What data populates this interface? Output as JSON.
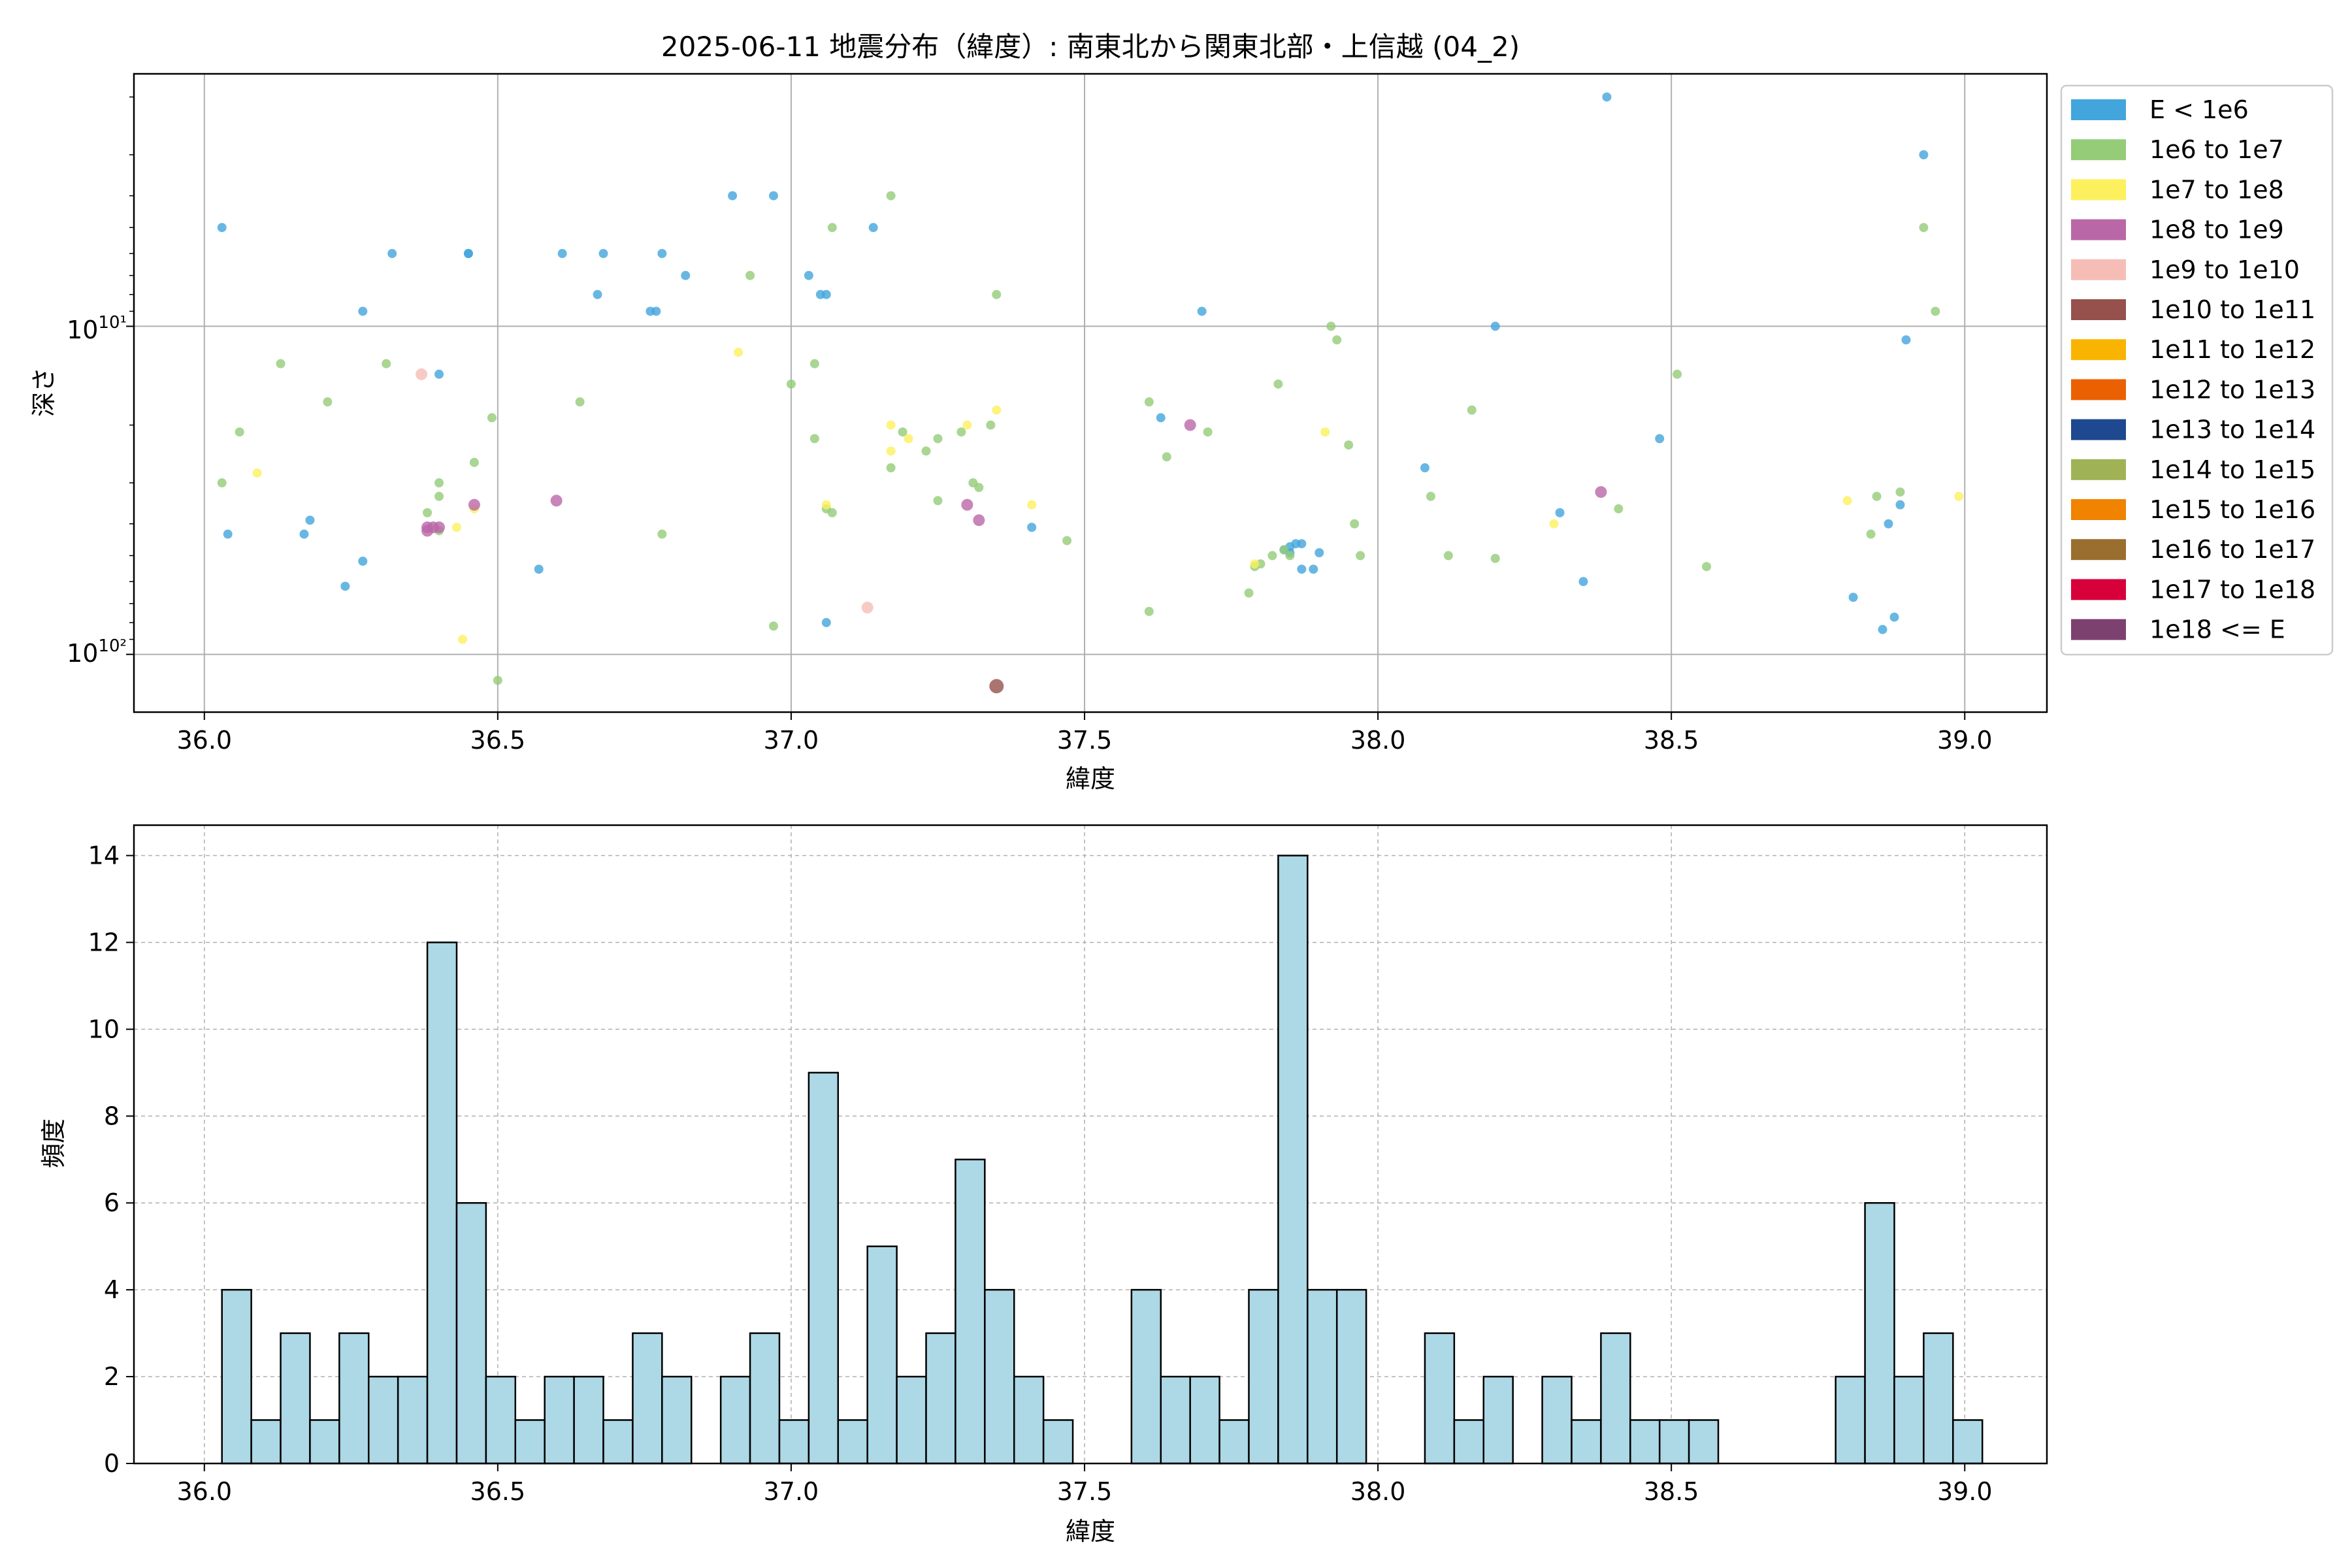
{
  "colors": {
    "bar_fill": "#add8e6",
    "bar_edge": "#000000",
    "grid": "#b0b0b0"
  },
  "chart_data": [
    {
      "type": "scatter",
      "title": "2025-06-11 地震分布（緯度）: 南東北から関東北部・上信越 (04_2)",
      "xlabel": "緯度",
      "ylabel": "深さ",
      "xlim": [
        35.88,
        39.14
      ],
      "ylim": [
        150,
        1.7
      ],
      "y_scale": "log",
      "y_inverted": true,
      "xticks": [
        36.0,
        36.5,
        37.0,
        37.5,
        38.0,
        38.5,
        39.0
      ],
      "xtick_labels": [
        "36.0",
        "36.5",
        "37.0",
        "37.5",
        "38.0",
        "38.5",
        "39.0"
      ],
      "ytick_labels": [
        "10¹",
        "10²"
      ],
      "grid": true,
      "legend": "outside-right",
      "legend_entries": [
        {
          "label": "E < 1e6",
          "color": "#42a5dc"
        },
        {
          "label": "1e6 to 1e7",
          "color": "#94cc78"
        },
        {
          "label": "1e7 to 1e8",
          "color": "#fdf05e"
        },
        {
          "label": "1e8 to 1e9",
          "color": "#ba67a8"
        },
        {
          "label": "1e9 to 1e10",
          "color": "#f6bdb7"
        },
        {
          "label": "1e10 to 1e11",
          "color": "#96514d"
        },
        {
          "label": "1e11 to 1e12",
          "color": "#f8b400"
        },
        {
          "label": "1e12 to 1e13",
          "color": "#eb6101"
        },
        {
          "label": "1e13 to 1e14",
          "color": "#1e4890"
        },
        {
          "label": "1e14 to 1e15",
          "color": "#9fb356"
        },
        {
          "label": "1e15 to 1e16",
          "color": "#f08300"
        },
        {
          "label": "1e16 to 1e17",
          "color": "#9a6e2f"
        },
        {
          "label": "1e17 to 1e18",
          "color": "#d7003a"
        },
        {
          "label": "1e18 <= E",
          "color": "#7d4170"
        }
      ],
      "series": [
        {
          "energy_class": 0,
          "points": [
            [
              36.03,
              5
            ],
            [
              36.04,
              43
            ],
            [
              36.17,
              43
            ],
            [
              36.18,
              39
            ],
            [
              36.24,
              62
            ],
            [
              36.27,
              52
            ],
            [
              36.27,
              9
            ],
            [
              36.32,
              6
            ],
            [
              36.4,
              14
            ],
            [
              36.45,
              6
            ],
            [
              36.45,
              6
            ],
            [
              36.57,
              55
            ],
            [
              36.61,
              6
            ],
            [
              36.67,
              8
            ],
            [
              36.68,
              6
            ],
            [
              36.76,
              9
            ],
            [
              36.77,
              9
            ],
            [
              36.78,
              6
            ],
            [
              36.82,
              7
            ],
            [
              36.9,
              4
            ],
            [
              36.97,
              4
            ],
            [
              37.03,
              7
            ],
            [
              37.05,
              8
            ],
            [
              37.06,
              8
            ],
            [
              37.06,
              80
            ],
            [
              37.14,
              5
            ],
            [
              37.41,
              41
            ],
            [
              37.63,
              19
            ],
            [
              37.7,
              9
            ],
            [
              37.84,
              48
            ],
            [
              37.85,
              47
            ],
            [
              37.85,
              49
            ],
            [
              37.86,
              46
            ],
            [
              37.87,
              46
            ],
            [
              37.87,
              55
            ],
            [
              37.89,
              55
            ],
            [
              37.9,
              49
            ],
            [
              38.08,
              27
            ],
            [
              38.2,
              10
            ],
            [
              38.31,
              37
            ],
            [
              38.35,
              60
            ],
            [
              38.39,
              2
            ],
            [
              38.48,
              22
            ],
            [
              38.81,
              67
            ],
            [
              38.86,
              84
            ],
            [
              38.87,
              40
            ],
            [
              38.88,
              77
            ],
            [
              38.89,
              35
            ],
            [
              38.9,
              11
            ],
            [
              38.93,
              3
            ]
          ]
        },
        {
          "energy_class": 1,
          "points": [
            [
              36.03,
              30
            ],
            [
              36.06,
              21
            ],
            [
              36.13,
              13
            ],
            [
              36.21,
              17
            ],
            [
              36.31,
              13
            ],
            [
              36.38,
              37
            ],
            [
              36.4,
              42
            ],
            [
              36.4,
              33
            ],
            [
              36.4,
              30
            ],
            [
              36.46,
              26
            ],
            [
              36.49,
              19
            ],
            [
              36.5,
              120
            ],
            [
              36.64,
              17
            ],
            [
              36.78,
              43
            ],
            [
              36.93,
              7
            ],
            [
              36.97,
              82
            ],
            [
              37.0,
              15
            ],
            [
              37.04,
              13
            ],
            [
              37.04,
              22
            ],
            [
              37.06,
              36
            ],
            [
              37.07,
              37
            ],
            [
              37.07,
              5
            ],
            [
              37.17,
              4
            ],
            [
              37.17,
              27
            ],
            [
              37.19,
              21
            ],
            [
              37.23,
              24
            ],
            [
              37.25,
              22
            ],
            [
              37.25,
              34
            ],
            [
              37.29,
              21
            ],
            [
              37.31,
              30
            ],
            [
              37.32,
              31
            ],
            [
              37.34,
              20
            ],
            [
              37.35,
              8
            ],
            [
              37.47,
              45
            ],
            [
              37.61,
              74
            ],
            [
              37.61,
              17
            ],
            [
              37.64,
              25
            ],
            [
              37.71,
              21
            ],
            [
              37.78,
              65
            ],
            [
              37.79,
              54
            ],
            [
              37.8,
              53
            ],
            [
              37.82,
              50
            ],
            [
              37.83,
              15
            ],
            [
              37.84,
              48
            ],
            [
              37.85,
              50
            ],
            [
              37.92,
              10
            ],
            [
              37.93,
              11
            ],
            [
              37.95,
              23
            ],
            [
              37.96,
              40
            ],
            [
              37.97,
              50
            ],
            [
              38.09,
              33
            ],
            [
              38.12,
              50
            ],
            [
              38.16,
              18
            ],
            [
              38.2,
              51
            ],
            [
              38.41,
              36
            ],
            [
              38.51,
              14
            ],
            [
              38.56,
              54
            ],
            [
              38.84,
              43
            ],
            [
              38.85,
              33
            ],
            [
              38.89,
              32
            ],
            [
              38.93,
              5
            ],
            [
              38.95,
              9
            ]
          ]
        },
        {
          "energy_class": 2,
          "points": [
            [
              36.09,
              28
            ],
            [
              36.43,
              41
            ],
            [
              36.44,
              90
            ],
            [
              36.46,
              36
            ],
            [
              36.91,
              12
            ],
            [
              37.06,
              35
            ],
            [
              37.17,
              20
            ],
            [
              37.17,
              24
            ],
            [
              37.2,
              22
            ],
            [
              37.3,
              20
            ],
            [
              37.35,
              18
            ],
            [
              37.41,
              35
            ],
            [
              37.79,
              53
            ],
            [
              37.91,
              21
            ],
            [
              38.3,
              40
            ],
            [
              38.8,
              34
            ],
            [
              38.99,
              33
            ]
          ]
        },
        {
          "energy_class": 3,
          "points": [
            [
              36.38,
              42
            ],
            [
              36.38,
              41
            ],
            [
              36.39,
              41
            ],
            [
              36.4,
              41
            ],
            [
              36.46,
              35
            ],
            [
              36.6,
              34
            ],
            [
              37.3,
              35
            ],
            [
              37.32,
              39
            ],
            [
              37.68,
              20
            ],
            [
              38.38,
              32
            ]
          ]
        },
        {
          "energy_class": 4,
          "points": [
            [
              36.37,
              14
            ],
            [
              37.13,
              72
            ]
          ]
        },
        {
          "energy_class": 5,
          "points": [
            [
              37.35,
              125
            ]
          ]
        }
      ]
    },
    {
      "type": "bar",
      "title": "",
      "xlabel": "緯度",
      "ylabel": "頻度",
      "xlim": [
        35.88,
        39.14
      ],
      "ylim": [
        0,
        14.7
      ],
      "bin_start": 36.03,
      "bin_width": 0.05,
      "xticks": [
        36.0,
        36.5,
        37.0,
        37.5,
        38.0,
        38.5,
        39.0
      ],
      "xtick_labels": [
        "36.0",
        "36.5",
        "37.0",
        "37.5",
        "38.0",
        "38.5",
        "39.0"
      ],
      "yticks": [
        0,
        2,
        4,
        6,
        8,
        10,
        12,
        14
      ],
      "ytick_labels": [
        "0",
        "2",
        "4",
        "6",
        "8",
        "10",
        "12",
        "14"
      ],
      "grid": true,
      "values": [
        4,
        1,
        3,
        1,
        3,
        2,
        2,
        12,
        6,
        2,
        1,
        2,
        2,
        1,
        3,
        2,
        0,
        2,
        3,
        1,
        9,
        1,
        5,
        2,
        3,
        7,
        4,
        2,
        1,
        0,
        0,
        4,
        2,
        2,
        1,
        4,
        14,
        4,
        4,
        0,
        0,
        3,
        1,
        2,
        0,
        2,
        1,
        3,
        1,
        1,
        1,
        0,
        0,
        0,
        0,
        2,
        6,
        2,
        3,
        1
      ]
    }
  ]
}
